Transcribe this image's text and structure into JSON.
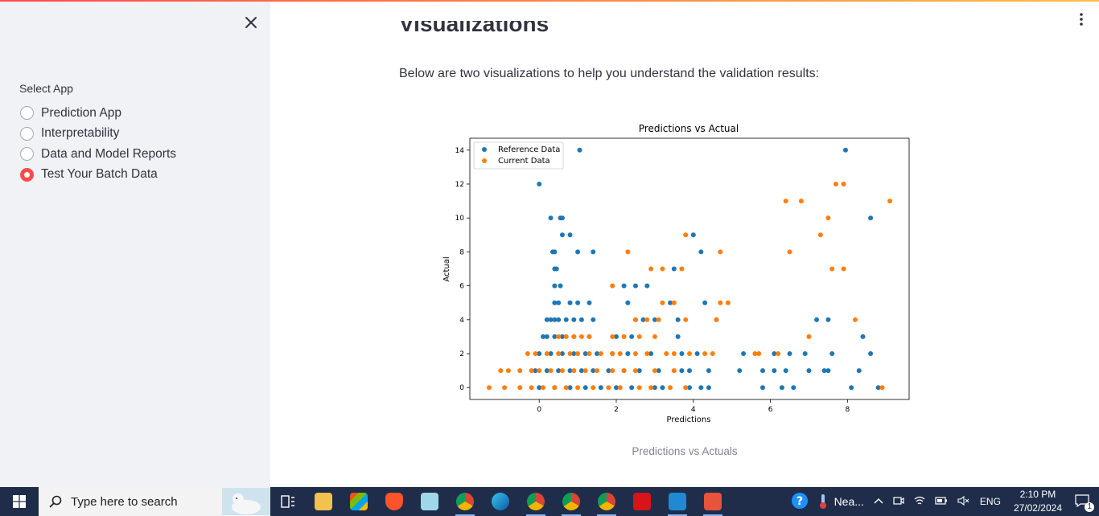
{
  "sidebar": {
    "select_label": "Select App",
    "options": [
      {
        "label": "Prediction App",
        "checked": false
      },
      {
        "label": "Interpretability",
        "checked": false
      },
      {
        "label": "Data and Model Reports",
        "checked": false
      },
      {
        "label": "Test Your Batch Data",
        "checked": true
      }
    ]
  },
  "main": {
    "heading": "Visualizations",
    "intro": "Below are two visualizations to help you understand the validation results:",
    "caption": "Predictions vs Actuals"
  },
  "chart_data": {
    "type": "scatter",
    "title": "Predictions vs Actual",
    "xlabel": "Predictions",
    "ylabel": "Actual",
    "xlim": [
      -1.8,
      9.6
    ],
    "ylim": [
      -0.7,
      14.7
    ],
    "xticks": [
      "0",
      "2",
      "4",
      "6",
      "8"
    ],
    "xtick_values": [
      0,
      2,
      4,
      6,
      8
    ],
    "yticks": [
      "0",
      "2",
      "4",
      "6",
      "8",
      "10",
      "12",
      "14"
    ],
    "ytick_values": [
      0,
      2,
      4,
      6,
      8,
      10,
      12,
      14
    ],
    "legend_position": "top-left",
    "series": [
      {
        "name": "Reference Data",
        "color": "#1f77b4",
        "points": [
          [
            0,
            12
          ],
          [
            1.05,
            14
          ],
          [
            0.3,
            10
          ],
          [
            0.55,
            10
          ],
          [
            0.6,
            10
          ],
          [
            0.6,
            9
          ],
          [
            0.8,
            9
          ],
          [
            0.35,
            8
          ],
          [
            0.4,
            8
          ],
          [
            1.0,
            8
          ],
          [
            1.4,
            8
          ],
          [
            0.4,
            7
          ],
          [
            0.45,
            7
          ],
          [
            0.4,
            6
          ],
          [
            0.55,
            6
          ],
          [
            2.2,
            6
          ],
          [
            2.5,
            6
          ],
          [
            2.8,
            6
          ],
          [
            3.5,
            7
          ],
          [
            4.0,
            9
          ],
          [
            4.2,
            8
          ],
          [
            0.4,
            5
          ],
          [
            0.5,
            5
          ],
          [
            0.8,
            5
          ],
          [
            1.0,
            5
          ],
          [
            1.3,
            5
          ],
          [
            2.3,
            5
          ],
          [
            3.4,
            5
          ],
          [
            4.3,
            5
          ],
          [
            0.2,
            4
          ],
          [
            0.3,
            4
          ],
          [
            0.4,
            4
          ],
          [
            0.5,
            4
          ],
          [
            0.7,
            4
          ],
          [
            0.9,
            4
          ],
          [
            1.1,
            4
          ],
          [
            1.4,
            4
          ],
          [
            2.5,
            4
          ],
          [
            2.7,
            4
          ],
          [
            3.0,
            4
          ],
          [
            3.6,
            4
          ],
          [
            4.6,
            4
          ],
          [
            7.2,
            4
          ],
          [
            7.5,
            4
          ],
          [
            0.1,
            3
          ],
          [
            0.2,
            3
          ],
          [
            0.4,
            3
          ],
          [
            0.6,
            3
          ],
          [
            0.9,
            3
          ],
          [
            1.3,
            3
          ],
          [
            2.0,
            3
          ],
          [
            2.4,
            3
          ],
          [
            3.6,
            3
          ],
          [
            8.4,
            3
          ],
          [
            0.0,
            2
          ],
          [
            0.3,
            2
          ],
          [
            0.6,
            2
          ],
          [
            0.9,
            2
          ],
          [
            1.2,
            2
          ],
          [
            1.5,
            2
          ],
          [
            1.9,
            2
          ],
          [
            2.3,
            2
          ],
          [
            2.9,
            2
          ],
          [
            3.7,
            2
          ],
          [
            4.1,
            2
          ],
          [
            5.3,
            2
          ],
          [
            6.1,
            2
          ],
          [
            6.5,
            2
          ],
          [
            6.9,
            2
          ],
          [
            7.6,
            2
          ],
          [
            8.6,
            2
          ],
          [
            -0.1,
            1
          ],
          [
            0.2,
            1
          ],
          [
            0.5,
            1
          ],
          [
            0.8,
            1
          ],
          [
            1.1,
            1
          ],
          [
            1.4,
            1
          ],
          [
            1.8,
            1
          ],
          [
            2.2,
            1
          ],
          [
            2.6,
            1
          ],
          [
            3.1,
            1
          ],
          [
            3.7,
            1
          ],
          [
            3.9,
            1
          ],
          [
            4.4,
            1
          ],
          [
            5.2,
            1
          ],
          [
            5.8,
            1
          ],
          [
            6.1,
            1
          ],
          [
            6.4,
            1
          ],
          [
            7.0,
            1
          ],
          [
            7.4,
            1
          ],
          [
            7.5,
            1
          ],
          [
            8.3,
            1
          ],
          [
            0.0,
            0
          ],
          [
            0.4,
            0
          ],
          [
            0.8,
            0
          ],
          [
            1.2,
            0
          ],
          [
            1.6,
            0
          ],
          [
            2.0,
            0
          ],
          [
            2.4,
            0
          ],
          [
            3.0,
            0
          ],
          [
            3.2,
            0
          ],
          [
            3.9,
            0
          ],
          [
            4.2,
            0
          ],
          [
            4.4,
            0
          ],
          [
            5.8,
            0
          ],
          [
            6.3,
            0
          ],
          [
            6.6,
            0
          ],
          [
            8.1,
            0
          ],
          [
            8.8,
            0
          ],
          [
            7.95,
            14
          ],
          [
            8.6,
            10
          ]
        ]
      },
      {
        "name": "Current Data",
        "color": "#ff7f0e",
        "points": [
          [
            6.4,
            11
          ],
          [
            6.8,
            11
          ],
          [
            9.1,
            11
          ],
          [
            7.7,
            12
          ],
          [
            7.9,
            12
          ],
          [
            7.5,
            10
          ],
          [
            7.3,
            9
          ],
          [
            6.5,
            8
          ],
          [
            2.3,
            8
          ],
          [
            3.8,
            9
          ],
          [
            4.7,
            8
          ],
          [
            2.9,
            7
          ],
          [
            3.2,
            7
          ],
          [
            3.7,
            7
          ],
          [
            7.6,
            7
          ],
          [
            7.9,
            7
          ],
          [
            1.9,
            6
          ],
          [
            3.2,
            5
          ],
          [
            3.5,
            5
          ],
          [
            4.7,
            5
          ],
          [
            4.9,
            5
          ],
          [
            2.5,
            4
          ],
          [
            2.8,
            4
          ],
          [
            3.1,
            4
          ],
          [
            3.8,
            4
          ],
          [
            4.6,
            4
          ],
          [
            8.2,
            4
          ],
          [
            0.5,
            3
          ],
          [
            0.7,
            3
          ],
          [
            0.9,
            3
          ],
          [
            1.1,
            3
          ],
          [
            1.3,
            3
          ],
          [
            1.9,
            3
          ],
          [
            2.2,
            3
          ],
          [
            2.6,
            3
          ],
          [
            3.0,
            3
          ],
          [
            7.0,
            3
          ],
          [
            -0.3,
            2
          ],
          [
            -0.1,
            2
          ],
          [
            0.2,
            2
          ],
          [
            0.5,
            2
          ],
          [
            0.8,
            2
          ],
          [
            1.0,
            2
          ],
          [
            1.3,
            2
          ],
          [
            1.6,
            2
          ],
          [
            1.9,
            2
          ],
          [
            2.1,
            2
          ],
          [
            2.5,
            2
          ],
          [
            2.8,
            2
          ],
          [
            3.3,
            2
          ],
          [
            3.5,
            2
          ],
          [
            3.9,
            2
          ],
          [
            4.3,
            2
          ],
          [
            4.5,
            2
          ],
          [
            5.6,
            2
          ],
          [
            5.7,
            2
          ],
          [
            6.2,
            2
          ],
          [
            -1.0,
            1
          ],
          [
            -0.8,
            1
          ],
          [
            -0.5,
            1
          ],
          [
            -0.2,
            1
          ],
          [
            0.0,
            1
          ],
          [
            0.3,
            1
          ],
          [
            0.6,
            1
          ],
          [
            0.9,
            1
          ],
          [
            1.2,
            1
          ],
          [
            1.5,
            1
          ],
          [
            1.9,
            1
          ],
          [
            2.2,
            1
          ],
          [
            2.5,
            1
          ],
          [
            3.0,
            1
          ],
          [
            3.5,
            1
          ],
          [
            -1.3,
            0
          ],
          [
            -0.9,
            0
          ],
          [
            -0.5,
            0
          ],
          [
            -0.2,
            0
          ],
          [
            0.1,
            0
          ],
          [
            0.4,
            0
          ],
          [
            0.7,
            0
          ],
          [
            1.0,
            0
          ],
          [
            1.4,
            0
          ],
          [
            1.8,
            0
          ],
          [
            2.1,
            0
          ],
          [
            2.6,
            0
          ],
          [
            2.9,
            0
          ],
          [
            3.4,
            0
          ],
          [
            3.8,
            0
          ],
          [
            8.9,
            0
          ]
        ]
      }
    ]
  },
  "taskbar": {
    "search_placeholder": "Type here to search",
    "weather_label": "Nea...",
    "language": "ENG",
    "time": "2:10 PM",
    "date": "27/02/2024",
    "notification_count": "1"
  }
}
